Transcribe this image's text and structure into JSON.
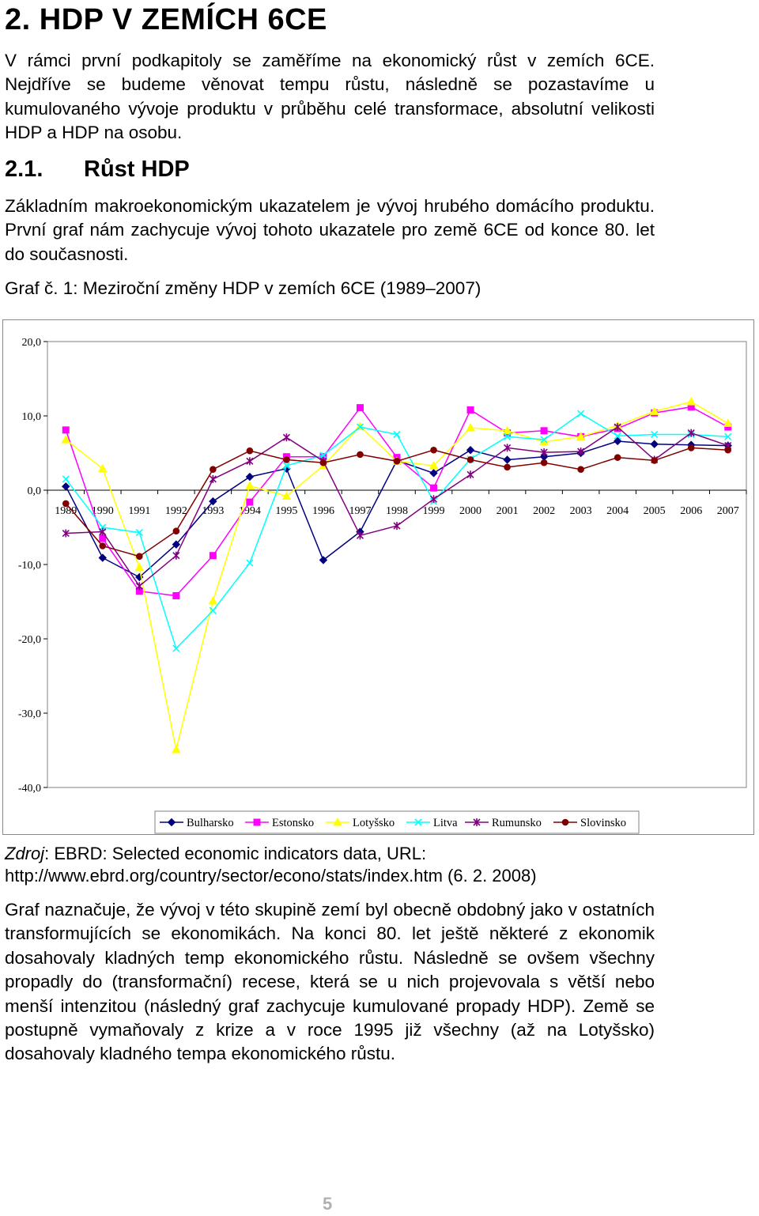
{
  "chapter_title": "2. HDP V ZEMÍCH 6CE",
  "intro_paragraph": "V rámci první podkapitoly se zaměříme na ekonomický růst v zemích 6CE. Nejdříve se budeme věnovat tempu růstu, následně se pozastavíme u kumulovaného vývoje produktu v průběhu celé transformace, absolutní velikosti HDP a HDP na osobu.",
  "section": {
    "number": "2.1.",
    "title": "Růst HDP"
  },
  "section_paragraph": "Základním makroekonomickým ukazatelem je vývoj hrubého domácího produktu. První graf nám zachycuje vývoj tohoto ukazatele pro země 6CE od konce 80. let do současnosti.",
  "graph_caption": "Graf č. 1: Meziroční změny HDP v zemích 6CE (1989–2007)",
  "chart_data": {
    "type": "line",
    "title": "",
    "xlabel": "",
    "ylabel": "",
    "x": [
      "1989",
      "1990",
      "1991",
      "1992",
      "1993",
      "1994",
      "1995",
      "1996",
      "1997",
      "1998",
      "1999",
      "2000",
      "2001",
      "2002",
      "2003",
      "2004",
      "2005",
      "2006",
      "2007"
    ],
    "y_ticks": [
      "20,0",
      "10,0",
      "0,0",
      "-10,0",
      "-20,0",
      "-30,0",
      "-40,0"
    ],
    "ylim": [
      -40,
      20
    ],
    "legend_position": "bottom",
    "series": [
      {
        "name": "Bulharsko",
        "color": "#000080",
        "marker": "diamond",
        "values": [
          0.5,
          -9.1,
          -11.7,
          -7.3,
          -1.5,
          1.8,
          2.9,
          -9.4,
          -5.6,
          4.0,
          2.3,
          5.4,
          4.1,
          4.5,
          5.0,
          6.6,
          6.2,
          6.1,
          6.0
        ]
      },
      {
        "name": "Estonsko",
        "color": "#FF00FF",
        "marker": "square",
        "values": [
          8.1,
          -6.5,
          -13.6,
          -14.2,
          -8.8,
          -1.6,
          4.5,
          4.5,
          11.1,
          4.4,
          0.3,
          10.8,
          7.7,
          8.0,
          7.2,
          8.3,
          10.4,
          11.2,
          8.5
        ]
      },
      {
        "name": "Lotyšsko",
        "color": "#FFFF00",
        "marker": "triangle",
        "values": [
          6.8,
          2.9,
          -10.4,
          -34.9,
          -14.9,
          0.6,
          -0.8,
          3.3,
          8.6,
          3.9,
          3.3,
          8.4,
          8.0,
          6.5,
          7.2,
          8.7,
          10.6,
          11.9,
          9.0
        ]
      },
      {
        "name": "Litva",
        "color": "#00FFFF",
        "marker": "x",
        "values": [
          1.5,
          -5.0,
          -5.7,
          -21.3,
          -16.2,
          -9.8,
          3.3,
          4.7,
          8.5,
          7.5,
          -1.5,
          4.2,
          7.2,
          6.8,
          10.3,
          7.3,
          7.5,
          7.5,
          7.2
        ]
      },
      {
        "name": "Rumunsko",
        "color": "#800080",
        "marker": "star",
        "values": [
          -5.8,
          -5.6,
          -12.9,
          -8.8,
          1.5,
          3.9,
          7.1,
          3.9,
          -6.1,
          -4.8,
          -1.2,
          2.1,
          5.7,
          5.1,
          5.2,
          8.5,
          4.1,
          7.7,
          6.0
        ]
      },
      {
        "name": "Slovinsko",
        "color": "#800000",
        "marker": "circle",
        "values": [
          -1.8,
          -7.5,
          -8.9,
          -5.5,
          2.8,
          5.3,
          4.1,
          3.7,
          4.8,
          3.9,
          5.4,
          4.1,
          3.1,
          3.7,
          2.8,
          4.4,
          4.0,
          5.7,
          5.4
        ]
      }
    ]
  },
  "source": {
    "label": "Zdroj",
    "rest_line1": ":   EBRD:   Selected   economic   indicators   data,   URL:",
    "line2": "http://www.ebrd.org/country/sector/econo/stats/index.htm (6. 2. 2008)"
  },
  "discussion_paragraph": "Graf naznačuje, že vývoj v této skupině zemí byl obecně obdobný jako v ostatních transformujících se ekonomikách. Na konci 80. let ještě některé z ekonomik dosahovaly kladných temp ekonomického růstu. Následně se ovšem všechny propadly do (transformační) recese, která se u nich projevovala s větší nebo menší intenzitou (následný graf zachycuje kumulované propady HDP). Země se postupně vymaňovaly z krize a v roce 1995 již všechny (až na Lotyšsko) dosahovaly kladného tempa ekonomického růstu.",
  "page_number": "5"
}
